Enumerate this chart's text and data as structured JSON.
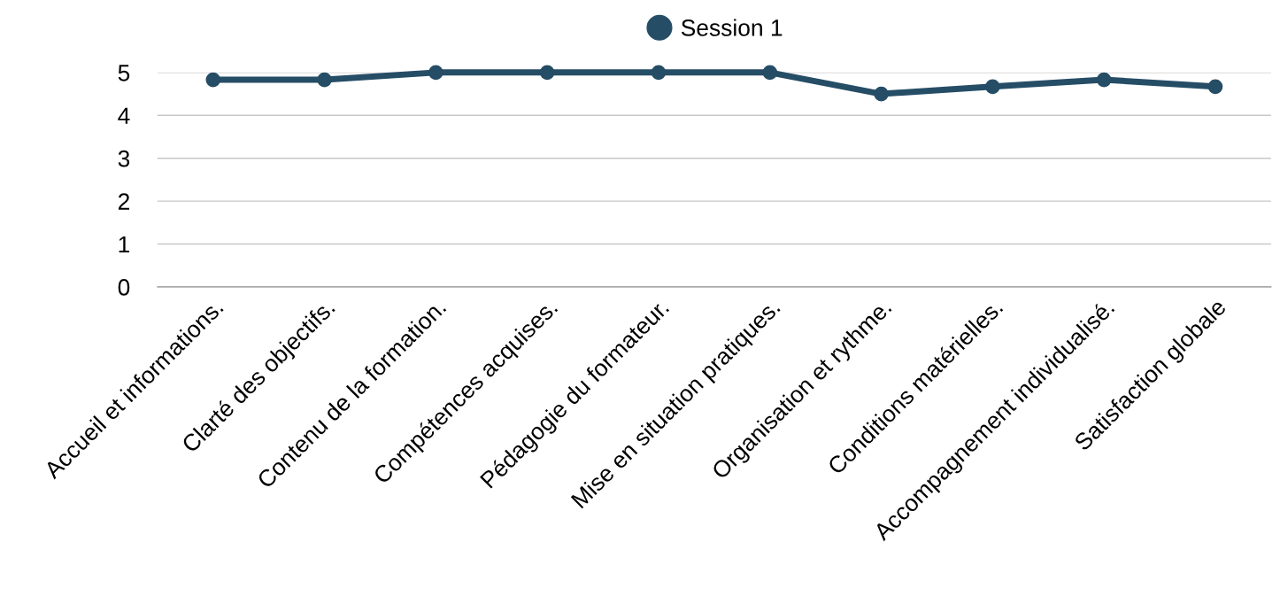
{
  "chart_data": {
    "type": "line",
    "categories": [
      "Accueil et informations.",
      "Clarté des objectifs.",
      "Contenu de la formation.",
      "Compétences acquises.",
      "Pédagogie du formateur.",
      "Mise en situation pratiques.",
      "Organisation et rythme.",
      "Conditions matérielles.",
      "Accompagnement individualisé.",
      "Satisfaction globale"
    ],
    "series": [
      {
        "name": "Session 1",
        "color": "#264d66",
        "values": [
          4.83,
          4.83,
          5,
          5,
          5,
          5,
          4.5,
          4.67,
          4.83,
          4.67
        ]
      }
    ],
    "ylim": [
      0,
      5
    ],
    "yticks": [
      0,
      1,
      2,
      3,
      4,
      5
    ],
    "grid": "y",
    "legend": "top",
    "marker": "circle",
    "line_style": "solid"
  }
}
